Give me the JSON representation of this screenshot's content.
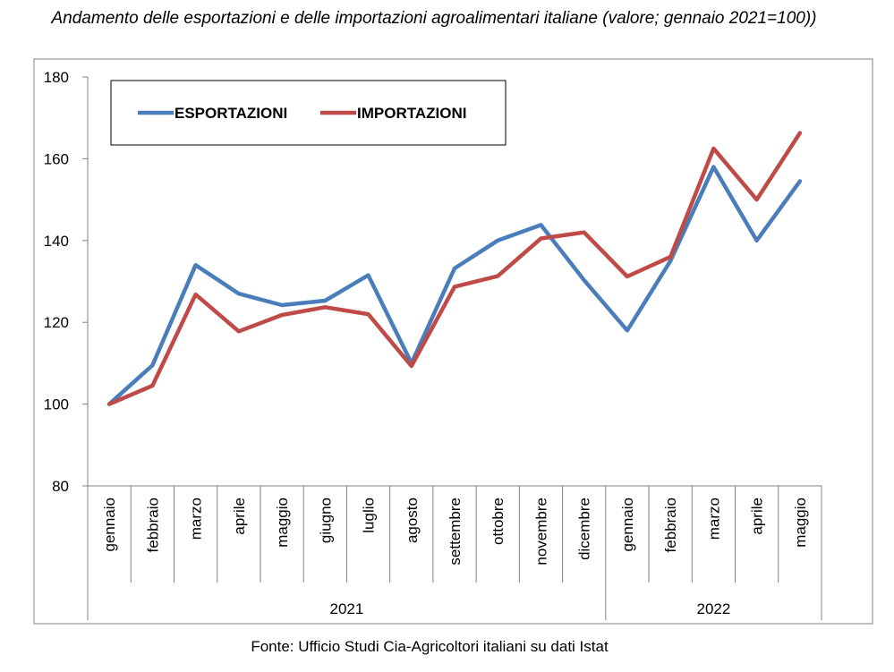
{
  "chart_data": {
    "type": "line",
    "title": "Andamento delle esportazioni e delle importazioni agroalimentari italiane (valore; gennaio 2021=100))",
    "source": "Fonte: Ufficio Studi Cia-Agricoltori italiani su dati Istat",
    "categories": [
      "gennaio",
      "febbraio",
      "marzo",
      "aprile",
      "maggio",
      "giugno",
      "luglio",
      "agosto",
      "settembre",
      "ottobre",
      "novembre",
      "dicembre",
      "gennaio",
      "febbraio",
      "marzo",
      "aprile",
      "maggio"
    ],
    "groups": [
      {
        "label": "2021",
        "count": 12
      },
      {
        "label": "2022",
        "count": 5
      }
    ],
    "ylim": [
      80,
      180
    ],
    "yticks": [
      80,
      100,
      120,
      140,
      160,
      180
    ],
    "grid": false,
    "legend_position": "top-left",
    "series": [
      {
        "name": "ESPORTAZIONI",
        "color": "#4a7ebb",
        "values": [
          100,
          109.5,
          134,
          127,
          124.2,
          125.3,
          131.5,
          110,
          133.2,
          140,
          143.8,
          130.3,
          118,
          135,
          158,
          140,
          154.5
        ]
      },
      {
        "name": "IMPORTAZIONI",
        "color": "#be4b48",
        "values": [
          100,
          104.5,
          126.8,
          117.8,
          121.8,
          123.7,
          122,
          109.3,
          128.7,
          131.3,
          140.5,
          142,
          131.2,
          136,
          162.5,
          150,
          166.3
        ]
      }
    ]
  }
}
